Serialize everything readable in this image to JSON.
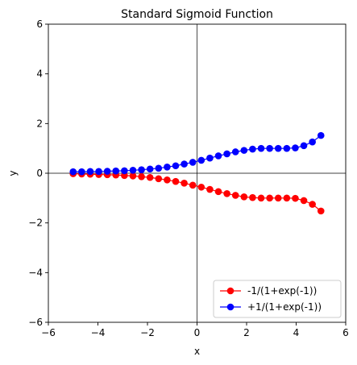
{
  "chart_data": {
    "type": "line",
    "title": "Standard Sigmoid Function",
    "xlabel": "x",
    "ylabel": "y",
    "xlim": [
      -6,
      6
    ],
    "ylim": [
      -6,
      6
    ],
    "xticks": [
      -6,
      -4,
      -2,
      0,
      2,
      4,
      6
    ],
    "yticks": [
      -6,
      -4,
      -2,
      0,
      2,
      4,
      6
    ],
    "xtick_labels": [
      "−6",
      "−4",
      "−2",
      "0",
      "2",
      "4",
      "6"
    ],
    "ytick_labels": [
      "−6",
      "−4",
      "−2",
      "0",
      "2",
      "4",
      "6"
    ],
    "reference_lines": {
      "x": 0,
      "y": 0
    },
    "grid": false,
    "legend_position": "lower-right",
    "x": [
      -5.0,
      -4.6552,
      -4.3103,
      -3.9655,
      -3.6207,
      -3.2759,
      -2.931,
      -2.5862,
      -2.2414,
      -1.8966,
      -1.5517,
      -1.2069,
      -0.8621,
      -0.5172,
      -0.1724,
      0.1724,
      0.5172,
      0.8621,
      1.2069,
      1.5517,
      1.8966,
      2.2414,
      2.5862,
      2.931,
      3.2759,
      3.6207,
      3.9655,
      4.3103,
      4.6552,
      5.0
    ],
    "series": [
      {
        "name": "-1/(1+exp(-1))",
        "color": "#ff0000",
        "values": [
          -0.02,
          -0.03,
          -0.04,
          -0.05,
          -0.06,
          -0.07,
          -0.09,
          -0.11,
          -0.14,
          -0.17,
          -0.22,
          -0.27,
          -0.33,
          -0.4,
          -0.48,
          -0.56,
          -0.65,
          -0.74,
          -0.82,
          -0.89,
          -0.95,
          -0.98,
          -1.0,
          -1.0,
          -1.0,
          -1.0,
          -1.01,
          -1.1,
          -1.25,
          -1.52
        ]
      },
      {
        "name": "+1/(1+exp(-1))",
        "color": "#0000ff",
        "values": [
          0.06,
          0.06,
          0.07,
          0.07,
          0.08,
          0.09,
          0.1,
          0.12,
          0.14,
          0.17,
          0.2,
          0.25,
          0.3,
          0.37,
          0.44,
          0.52,
          0.61,
          0.7,
          0.78,
          0.86,
          0.92,
          0.97,
          1.0,
          1.0,
          1.0,
          1.0,
          1.02,
          1.11,
          1.26,
          1.52
        ]
      }
    ]
  }
}
